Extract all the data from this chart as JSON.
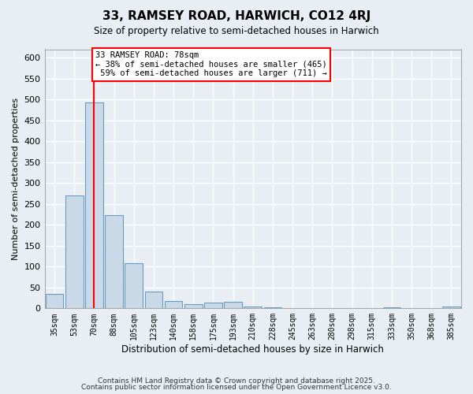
{
  "title": "33, RAMSEY ROAD, HARWICH, CO12 4RJ",
  "subtitle": "Size of property relative to semi-detached houses in Harwich",
  "xlabel": "Distribution of semi-detached houses by size in Harwich",
  "ylabel": "Number of semi-detached properties",
  "categories": [
    "35sqm",
    "53sqm",
    "70sqm",
    "88sqm",
    "105sqm",
    "123sqm",
    "140sqm",
    "158sqm",
    "175sqm",
    "193sqm",
    "210sqm",
    "228sqm",
    "245sqm",
    "263sqm",
    "280sqm",
    "298sqm",
    "315sqm",
    "333sqm",
    "350sqm",
    "368sqm",
    "385sqm"
  ],
  "values": [
    35,
    270,
    493,
    223,
    108,
    40,
    18,
    10,
    13,
    15,
    5,
    3,
    0,
    0,
    0,
    0,
    0,
    3,
    0,
    0,
    5
  ],
  "bar_color": "#c9d9e8",
  "bar_edge_color": "#6a9cbf",
  "red_line_x": 2.0,
  "red_line_label": "33 RAMSEY ROAD: 78sqm",
  "pct_smaller": 38,
  "count_smaller": 465,
  "pct_larger": 59,
  "count_larger": 711,
  "ylim": [
    0,
    620
  ],
  "yticks": [
    0,
    50,
    100,
    150,
    200,
    250,
    300,
    350,
    400,
    450,
    500,
    550,
    600
  ],
  "background_color": "#e8eef4",
  "grid_color": "#ffffff",
  "footer1": "Contains HM Land Registry data © Crown copyright and database right 2025.",
  "footer2": "Contains public sector information licensed under the Open Government Licence v3.0."
}
